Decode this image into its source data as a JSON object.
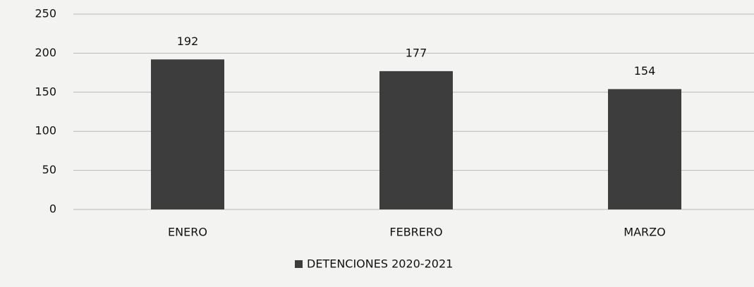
{
  "chart_data": {
    "type": "bar",
    "categories": [
      "ENERO",
      "FEBRERO",
      "MARZO"
    ],
    "series": [
      {
        "name": "DETENCIONES 2020-2021",
        "color": "#3d3d3d",
        "values": [
          192,
          177,
          154
        ]
      }
    ],
    "ylim": [
      0,
      250
    ],
    "yticks": [
      0,
      50,
      100,
      150,
      200,
      250
    ],
    "grid": true,
    "legend": "bottom"
  }
}
